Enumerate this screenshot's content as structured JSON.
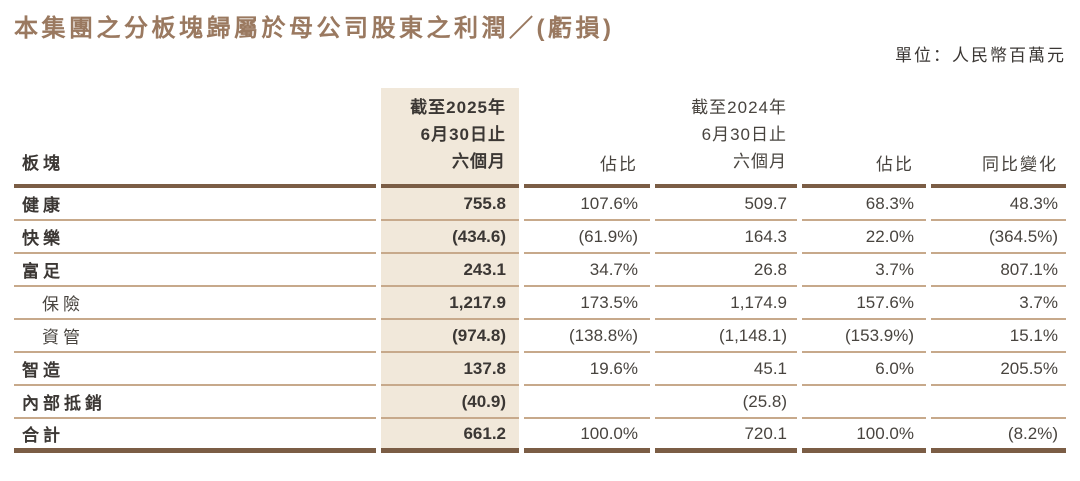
{
  "page": {
    "title": "本集團之分板塊歸屬於母公司股東之利潤／(虧損)",
    "unit_note": "單位：人民幣百萬元"
  },
  "table": {
    "headers": {
      "segment": "板塊",
      "period_2025_l1": "截至2025年",
      "period_2025_l2": "6月30日止",
      "period_2025_l3": "六個月",
      "pct_2025": "佔比",
      "period_2024_l1": "截至2024年",
      "period_2024_l2": "6月30日止",
      "period_2024_l3": "六個月",
      "pct_2024": "佔比",
      "yoy": "同比變化"
    },
    "rows": [
      {
        "label": "健康",
        "indent": false,
        "total": false,
        "v2025": "755.8",
        "p2025": "107.6%",
        "v2024": "509.7",
        "p2024": "68.3%",
        "yoy": "48.3%"
      },
      {
        "label": "快樂",
        "indent": false,
        "total": false,
        "v2025": "(434.6)",
        "p2025": "(61.9%)",
        "v2024": "164.3",
        "p2024": "22.0%",
        "yoy": "(364.5%)"
      },
      {
        "label": "富足",
        "indent": false,
        "total": false,
        "v2025": "243.1",
        "p2025": "34.7%",
        "v2024": "26.8",
        "p2024": "3.7%",
        "yoy": "807.1%"
      },
      {
        "label": "保險",
        "indent": true,
        "total": false,
        "v2025": "1,217.9",
        "p2025": "173.5%",
        "v2024": "1,174.9",
        "p2024": "157.6%",
        "yoy": "3.7%"
      },
      {
        "label": "資管",
        "indent": true,
        "total": false,
        "v2025": "(974.8)",
        "p2025": "(138.8%)",
        "v2024": "(1,148.1)",
        "p2024": "(153.9%)",
        "yoy": "15.1%"
      },
      {
        "label": "智造",
        "indent": false,
        "total": false,
        "v2025": "137.8",
        "p2025": "19.6%",
        "v2024": "45.1",
        "p2024": "6.0%",
        "yoy": "205.5%"
      },
      {
        "label": "內部抵銷",
        "indent": false,
        "total": false,
        "v2025": "(40.9)",
        "p2025": "",
        "v2024": "(25.8)",
        "p2024": "",
        "yoy": ""
      },
      {
        "label": "合計",
        "indent": false,
        "total": true,
        "v2025": "661.2",
        "p2025": "100.0%",
        "v2024": "720.1",
        "p2024": "100.0%",
        "yoy": "(8.2%)"
      }
    ]
  },
  "colors": {
    "title_brown": "#9a7960",
    "rule_dark": "#7b5d45",
    "rule_light": "#c7a98b",
    "highlight_beige": "#f1e8da",
    "text_dark": "#3b3734",
    "text_regular": "#48443f"
  }
}
